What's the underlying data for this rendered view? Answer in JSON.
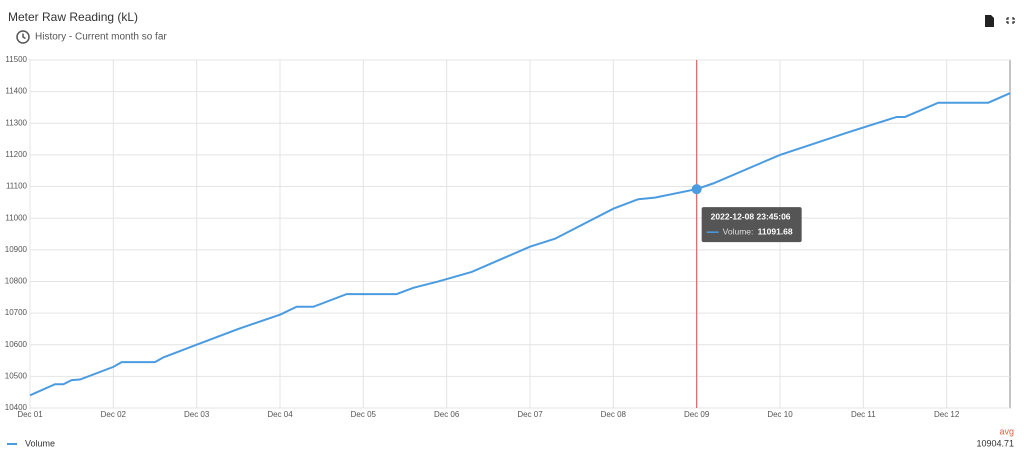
{
  "header": {
    "title": "Meter Raw Reading (kL)",
    "subtitle": "History - Current month so far"
  },
  "chart_data": {
    "type": "line",
    "x": [
      1.0,
      1.3,
      1.4,
      1.5,
      1.6,
      2.0,
      2.1,
      2.5,
      2.6,
      3.0,
      3.5,
      4.0,
      4.2,
      4.4,
      4.8,
      5.4,
      5.6,
      5.9,
      6.1,
      6.3,
      7.0,
      7.3,
      8.0,
      8.3,
      8.5,
      9.0,
      9.2,
      10.0,
      10.8,
      11.4,
      11.5,
      11.9,
      12.5,
      12.76
    ],
    "series": [
      {
        "name": "Volume",
        "color": "#4a9be0",
        "values": [
          10440,
          10475,
          10475,
          10488,
          10490,
          10530,
          10545,
          10545,
          10560,
          10600,
          10650,
          10695,
          10720,
          10720,
          10760,
          10760,
          10780,
          10800,
          10815,
          10830,
          10910,
          10935,
          11030,
          11060,
          11065,
          11092,
          11110,
          11200,
          11270,
          11320,
          11320,
          11365,
          11365,
          11395
        ]
      }
    ],
    "xlim": [
      1,
      12.76
    ],
    "xticks": [
      {
        "value": 1,
        "label": "Dec 01"
      },
      {
        "value": 2,
        "label": "Dec 02"
      },
      {
        "value": 3,
        "label": "Dec 03"
      },
      {
        "value": 4,
        "label": "Dec 04"
      },
      {
        "value": 5,
        "label": "Dec 05"
      },
      {
        "value": 6,
        "label": "Dec 06"
      },
      {
        "value": 7,
        "label": "Dec 07"
      },
      {
        "value": 8,
        "label": "Dec 08"
      },
      {
        "value": 9,
        "label": "Dec 09"
      },
      {
        "value": 10,
        "label": "Dec 10"
      },
      {
        "value": 11,
        "label": "Dec 11"
      },
      {
        "value": 12,
        "label": "Dec 12"
      }
    ],
    "ylim": [
      10400,
      11500
    ],
    "yticks": [
      10400,
      10500,
      10600,
      10700,
      10800,
      10900,
      11000,
      11100,
      11200,
      11300,
      11400,
      11500
    ],
    "grid": true,
    "cursor": {
      "x": 9.0,
      "value": 11091.68,
      "color": "#e06666",
      "time": "2022-12-08 23:45:06",
      "label": "Volume:"
    },
    "legend": {
      "avg_label": "avg",
      "avg_value": 10904.71
    }
  }
}
